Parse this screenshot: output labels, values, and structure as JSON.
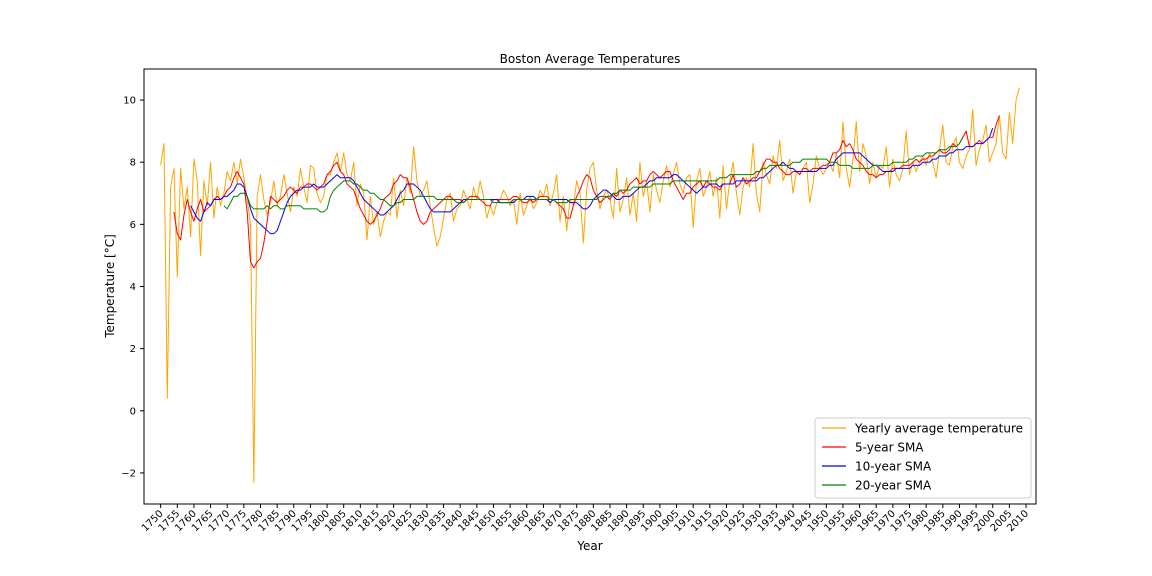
{
  "chart_data": {
    "type": "line",
    "title": "Boston Average Temperatures",
    "xlabel": "Year",
    "ylabel": "Temperature [°C]",
    "xlim": [
      1745,
      2013
    ],
    "ylim": [
      -3,
      11
    ],
    "x_ticks": [
      1750,
      1755,
      1760,
      1765,
      1770,
      1775,
      1780,
      1785,
      1790,
      1795,
      1800,
      1805,
      1810,
      1815,
      1820,
      1825,
      1830,
      1835,
      1840,
      1845,
      1850,
      1855,
      1860,
      1865,
      1870,
      1875,
      1880,
      1885,
      1890,
      1895,
      1900,
      1905,
      1910,
      1915,
      1920,
      1925,
      1930,
      1935,
      1940,
      1945,
      1950,
      1955,
      1960,
      1965,
      1970,
      1975,
      1980,
      1985,
      1990,
      1995,
      2000,
      2005,
      2010
    ],
    "y_ticks": [
      -2,
      0,
      2,
      4,
      6,
      8,
      10
    ],
    "grid": false,
    "legend_position": "lower-right",
    "series": [
      {
        "name": "Yearly average temperature",
        "color": "#FFA500",
        "x_start": 1750,
        "values": [
          7.9,
          8.6,
          0.4,
          7.2,
          7.8,
          4.3,
          7.8,
          6.5,
          7.2,
          5.6,
          8.1,
          7.4,
          5.0,
          7.4,
          6.6,
          8.0,
          6.2,
          7.2,
          6.6,
          7.0,
          7.7,
          7.4,
          8.0,
          7.3,
          8.1,
          7.5,
          6.8,
          6.0,
          -2.3,
          6.9,
          7.6,
          6.8,
          6.3,
          6.7,
          7.4,
          6.6,
          6.9,
          7.6,
          7.0,
          6.4,
          7.2,
          6.9,
          7.8,
          7.2,
          6.7,
          7.9,
          7.8,
          7.0,
          6.7,
          6.9,
          7.6,
          7.6,
          8.0,
          8.3,
          7.7,
          8.3,
          7.6,
          7.4,
          8.0,
          6.6,
          7.3,
          7.0,
          5.5,
          6.9,
          6.0,
          6.4,
          5.6,
          6.1,
          6.4,
          6.3,
          7.5,
          6.2,
          7.1,
          6.6,
          7.5,
          7.0,
          8.5,
          7.4,
          6.9,
          7.1,
          7.4,
          6.6,
          5.9,
          5.3,
          5.6,
          6.2,
          6.8,
          7.0,
          6.1,
          6.5,
          6.6,
          7.1,
          6.8,
          6.5,
          7.2,
          6.8,
          7.4,
          6.9,
          6.2,
          6.6,
          6.3,
          6.7,
          6.8,
          7.1,
          6.9,
          6.6,
          6.8,
          6.0,
          7.0,
          6.3,
          6.6,
          6.9,
          6.5,
          6.7,
          7.1,
          6.9,
          7.3,
          6.6,
          7.0,
          7.6,
          6.1,
          6.9,
          5.8,
          6.8,
          6.6,
          7.4,
          7.0,
          5.4,
          7.1,
          7.8,
          8.0,
          7.1,
          6.5,
          6.9,
          7.1,
          6.8,
          6.2,
          7.8,
          6.4,
          6.8,
          7.5,
          6.3,
          7.0,
          6.1,
          8.0,
          6.9,
          7.4,
          6.4,
          7.6,
          7.1,
          6.7,
          7.4,
          7.9,
          7.2,
          7.6,
          8.0,
          7.3,
          7.0,
          7.5,
          7.6,
          5.9,
          7.4,
          7.8,
          6.9,
          7.2,
          7.7,
          6.9,
          7.5,
          6.2,
          7.9,
          6.5,
          7.4,
          8.0,
          7.0,
          6.3,
          7.2,
          7.5,
          7.2,
          8.6,
          7.0,
          6.4,
          8.0,
          7.6,
          7.3,
          8.2,
          7.8,
          8.7,
          7.4,
          7.7,
          8.1,
          7.0,
          7.7,
          7.6,
          7.8,
          8.0,
          6.7,
          7.3,
          8.2,
          7.8,
          7.6,
          7.8,
          8.0,
          7.7,
          8.3,
          7.5,
          9.3,
          7.8,
          7.2,
          8.1,
          9.3,
          7.7,
          8.6,
          8.2,
          7.3,
          8.0,
          7.5,
          7.9,
          7.8,
          8.5,
          7.2,
          8.1,
          7.6,
          7.4,
          7.8,
          9.0,
          7.6,
          8.0,
          7.7,
          8.0,
          8.2,
          7.9,
          8.3,
          8.0,
          7.5,
          8.4,
          9.2,
          8.0,
          7.9,
          8.5,
          8.8,
          8.0,
          7.8,
          8.2,
          8.4,
          9.7,
          7.9,
          8.4,
          8.7,
          9.2,
          8.0,
          8.3,
          8.6,
          9.5,
          8.3,
          8.1,
          9.6,
          8.6,
          10.0,
          10.4
        ]
      },
      {
        "name": "5-year SMA",
        "color": "#FF0000",
        "x_start": 1754,
        "values": [
          6.4,
          5.7,
          5.5,
          6.3,
          6.8,
          6.4,
          6.1,
          6.5,
          6.8,
          6.4,
          6.5,
          6.6,
          6.8,
          6.9,
          6.8,
          6.9,
          7.1,
          7.2,
          7.5,
          7.7,
          7.5,
          7.3,
          6.4,
          4.8,
          4.6,
          4.8,
          4.9,
          5.4,
          6.1,
          6.9,
          6.8,
          6.7,
          6.8,
          6.9,
          7.1,
          7.2,
          7.1,
          7.0,
          7.2,
          7.2,
          7.3,
          7.3,
          7.2,
          7.1,
          7.2,
          7.3,
          7.6,
          7.7,
          7.9,
          8.0,
          7.7,
          7.6,
          7.3,
          7.2,
          7.1,
          6.8,
          6.5,
          6.3,
          6.1,
          6.0,
          6.1,
          6.3,
          6.5,
          6.8,
          6.9,
          7.0,
          7.3,
          7.4,
          7.6,
          7.5,
          7.5,
          7.2,
          6.8,
          6.4,
          6.1,
          6.0,
          6.1,
          6.4,
          6.5,
          6.6,
          6.7,
          6.8,
          6.9,
          6.9,
          6.8,
          6.8,
          6.8,
          6.7,
          6.8,
          6.9,
          6.9,
          6.9,
          6.8,
          6.7,
          6.6,
          6.6,
          6.8,
          6.8,
          6.8,
          6.8,
          6.8,
          6.8,
          6.9,
          6.9,
          6.8,
          6.7,
          6.7,
          6.8,
          6.7,
          6.8,
          6.9,
          6.9,
          6.9,
          6.8,
          6.8,
          6.7,
          6.6,
          6.5,
          6.2,
          6.2,
          6.6,
          6.9,
          7.1,
          7.4,
          7.6,
          7.5,
          7.1,
          6.9,
          6.7,
          6.8,
          6.9,
          6.8,
          7.0,
          6.9,
          7.1,
          7.0,
          7.1,
          7.3,
          7.4,
          7.5,
          7.3,
          7.4,
          7.4,
          7.6,
          7.7,
          7.6,
          7.5,
          7.6,
          7.7,
          7.7,
          7.4,
          7.2,
          7.0,
          6.8,
          7.0,
          7.0,
          7.2,
          7.3,
          7.4,
          7.2,
          7.4,
          7.3,
          7.2,
          7.2,
          7.1,
          7.3,
          7.3,
          7.3,
          7.6,
          7.2,
          7.3,
          7.5,
          7.3,
          7.4,
          7.5,
          7.5,
          7.7,
          7.9,
          8.1,
          8.1,
          8.0,
          8.0,
          7.8,
          7.7,
          7.6,
          7.6,
          7.7,
          7.7,
          7.6,
          7.8,
          7.8,
          7.7,
          7.8,
          7.8,
          7.8,
          7.9,
          7.9,
          8.0,
          8.3,
          8.3,
          8.4,
          8.7,
          8.5,
          8.6,
          8.4,
          8.1,
          8.0,
          7.9,
          7.7,
          7.6,
          7.6,
          7.5,
          7.6,
          7.6,
          7.7,
          7.7,
          7.8,
          7.8,
          7.8,
          7.9,
          7.9,
          7.9,
          8.0,
          8.1,
          8.0,
          8.1,
          8.1,
          8.2,
          8.2,
          8.3,
          8.4,
          8.3,
          8.3,
          8.4,
          8.6,
          8.5,
          8.6,
          8.8,
          9.0,
          8.5,
          8.5,
          8.6,
          8.7,
          8.6,
          8.7,
          8.8,
          8.8,
          9.2,
          9.5
        ]
      },
      {
        "name": "10-year SMA",
        "color": "#0000FF",
        "x_start": 1759,
        "values": [
          6.6,
          6.4,
          6.2,
          6.1,
          6.4,
          6.7,
          6.6,
          6.8,
          6.8,
          6.8,
          6.9,
          6.9,
          7.0,
          7.1,
          7.3,
          7.3,
          7.2,
          6.9,
          6.5,
          6.2,
          6.1,
          6.0,
          5.9,
          5.8,
          5.7,
          5.7,
          5.8,
          6.1,
          6.4,
          6.7,
          6.9,
          7.0,
          7.1,
          7.1,
          7.2,
          7.2,
          7.2,
          7.3,
          7.2,
          7.2,
          7.2,
          7.3,
          7.4,
          7.5,
          7.6,
          7.5,
          7.5,
          7.5,
          7.5,
          7.4,
          7.2,
          7.0,
          6.8,
          6.7,
          6.6,
          6.5,
          6.4,
          6.3,
          6.3,
          6.4,
          6.5,
          6.6,
          6.8,
          7.0,
          7.1,
          7.3,
          7.3,
          7.3,
          7.2,
          7.1,
          6.9,
          6.7,
          6.5,
          6.4,
          6.4,
          6.4,
          6.4,
          6.4,
          6.4,
          6.5,
          6.6,
          6.7,
          6.8,
          6.8,
          6.8,
          6.8,
          6.8,
          6.8,
          6.8,
          6.8,
          6.8,
          6.8,
          6.8,
          6.7,
          6.7,
          6.7,
          6.7,
          6.7,
          6.8,
          6.8,
          6.8,
          6.9,
          6.9,
          6.9,
          6.8,
          6.8,
          6.8,
          6.8,
          6.7,
          6.8,
          6.8,
          6.8,
          6.8,
          6.8,
          6.7,
          6.7,
          6.7,
          6.6,
          6.5,
          6.5,
          6.6,
          6.8,
          6.9,
          7.0,
          7.1,
          7.1,
          7.0,
          6.9,
          6.8,
          6.8,
          6.9,
          6.9,
          6.9,
          7.0,
          7.1,
          7.2,
          7.2,
          7.3,
          7.4,
          7.4,
          7.5,
          7.5,
          7.5,
          7.5,
          7.5,
          7.6,
          7.6,
          7.5,
          7.4,
          7.3,
          7.2,
          7.1,
          7.0,
          7.1,
          7.2,
          7.2,
          7.3,
          7.3,
          7.3,
          7.2,
          7.3,
          7.3,
          7.3,
          7.3,
          7.4,
          7.4,
          7.4,
          7.4,
          7.4,
          7.4,
          7.4,
          7.5,
          7.5,
          7.6,
          7.7,
          7.8,
          7.9,
          7.9,
          8.0,
          7.9,
          7.8,
          7.8,
          7.7,
          7.7,
          7.7,
          7.7,
          7.7,
          7.7,
          7.7,
          7.8,
          7.8,
          7.8,
          7.9,
          7.9,
          8.1,
          8.2,
          8.3,
          8.3,
          8.3,
          8.3,
          8.3,
          8.3,
          8.2,
          8.1,
          8.0,
          7.9,
          7.9,
          7.8,
          7.7,
          7.7,
          7.7,
          7.7,
          7.8,
          7.8,
          7.8,
          7.8,
          7.8,
          7.9,
          7.9,
          7.9,
          8.0,
          8.0,
          8.0,
          8.1,
          8.1,
          8.2,
          8.2,
          8.2,
          8.3,
          8.3,
          8.4,
          8.4,
          8.4,
          8.5,
          8.5,
          8.5,
          8.6,
          8.6,
          8.6,
          8.7,
          8.8,
          9.1
        ]
      },
      {
        "name": "20-year SMA",
        "color": "#008000",
        "x_start": 1769,
        "values": [
          6.6,
          6.5,
          6.7,
          6.9,
          6.9,
          7.0,
          7.0,
          6.9,
          6.6,
          6.5,
          6.5,
          6.5,
          6.5,
          6.6,
          6.5,
          6.6,
          6.6,
          6.5,
          6.5,
          6.6,
          6.6,
          6.6,
          6.6,
          6.6,
          6.5,
          6.5,
          6.5,
          6.5,
          6.5,
          6.4,
          6.4,
          6.5,
          6.9,
          7.1,
          7.2,
          7.3,
          7.4,
          7.4,
          7.4,
          7.3,
          7.3,
          7.2,
          7.1,
          7.1,
          7.0,
          7.0,
          6.9,
          6.8,
          6.8,
          6.7,
          6.6,
          6.6,
          6.7,
          6.7,
          6.8,
          6.8,
          6.8,
          6.8,
          6.9,
          6.9,
          6.9,
          6.9,
          6.9,
          6.9,
          6.8,
          6.8,
          6.8,
          6.8,
          6.8,
          6.8,
          6.7,
          6.7,
          6.7,
          6.8,
          6.8,
          6.8,
          6.8,
          6.8,
          6.8,
          6.8,
          6.8,
          6.7,
          6.7,
          6.7,
          6.7,
          6.7,
          6.7,
          6.8,
          6.8,
          6.8,
          6.8,
          6.8,
          6.8,
          6.8,
          6.8,
          6.8,
          6.8,
          6.8,
          6.8,
          6.8,
          6.7,
          6.7,
          6.7,
          6.7,
          6.8,
          6.8,
          6.8,
          6.8,
          6.8,
          6.8,
          6.8,
          6.8,
          6.8,
          6.9,
          6.9,
          6.9,
          6.9,
          7.0,
          7.0,
          7.1,
          7.1,
          7.1,
          7.1,
          7.2,
          7.2,
          7.2,
          7.2,
          7.2,
          7.2,
          7.3,
          7.3,
          7.3,
          7.3,
          7.3,
          7.3,
          7.4,
          7.4,
          7.4,
          7.4,
          7.4,
          7.4,
          7.4,
          7.4,
          7.4,
          7.4,
          7.4,
          7.4,
          7.4,
          7.4,
          7.5,
          7.5,
          7.5,
          7.6,
          7.6,
          7.6,
          7.6,
          7.6,
          7.6,
          7.6,
          7.6,
          7.7,
          7.7,
          7.8,
          7.8,
          7.9,
          7.9,
          7.9,
          7.9,
          7.9,
          7.9,
          7.9,
          8.0,
          8.0,
          8.0,
          8.1,
          8.1,
          8.1,
          8.1,
          8.1,
          8.1,
          8.1,
          8.1,
          8.0,
          8.0,
          8.0,
          7.9,
          7.9,
          7.9,
          7.9,
          7.8,
          7.8,
          7.8,
          7.8,
          7.8,
          7.8,
          7.9,
          7.9,
          7.9,
          7.9,
          7.9,
          7.9,
          8.0,
          8.0,
          8.0,
          8.0,
          8.0,
          8.1,
          8.1,
          8.2,
          8.2,
          8.2,
          8.3,
          8.3,
          8.3,
          8.3,
          8.4,
          8.4,
          8.4,
          8.5,
          8.5,
          8.5,
          8.6,
          8.8
        ]
      }
    ]
  }
}
